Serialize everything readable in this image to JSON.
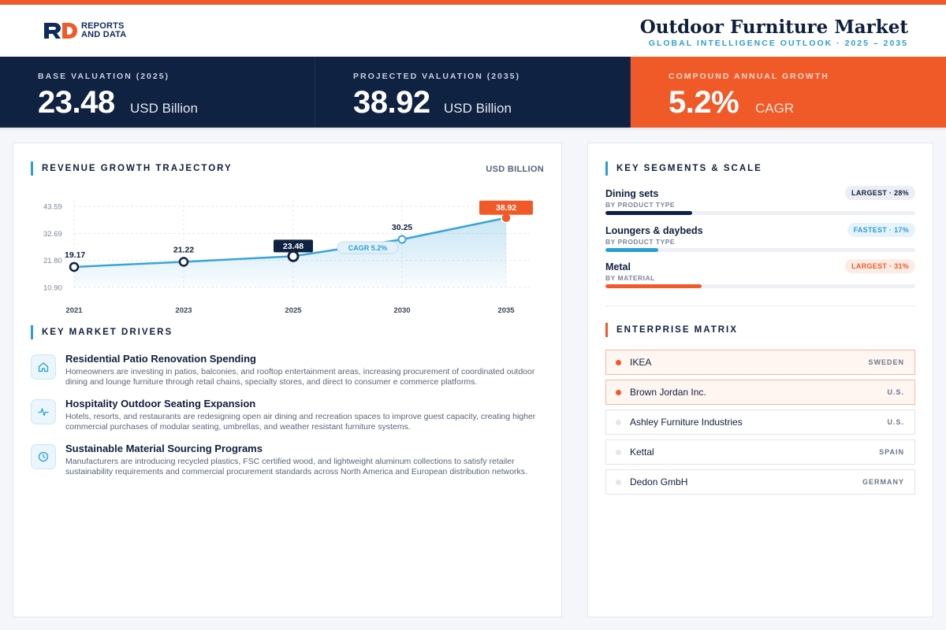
{
  "brand": {
    "line1": "REPORTS",
    "line2": "AND DATA",
    "mark": "RD"
  },
  "header": {
    "title": "Outdoor Furniture Market",
    "subtitle": "GLOBAL INTELLIGENCE OUTLOOK  ·  2025 – 2035"
  },
  "kpis": [
    {
      "label": "BASE VALUATION (2025)",
      "value": "23.48",
      "unit": "USD Billion"
    },
    {
      "label": "PROJECTED VALUATION (2035)",
      "value": "38.92",
      "unit": "USD Billion"
    },
    {
      "label": "COMPOUND ANNUAL GROWTH",
      "value": "5.2%",
      "unit": "CAGR"
    }
  ],
  "revenue": {
    "section_title": "REVENUE GROWTH TRAJECTORY",
    "unit_label": "USD BILLION",
    "cagr_badge": "CAGR 5.2%"
  },
  "chart_data": {
    "type": "area",
    "title": "REVENUE GROWTH TRAJECTORY",
    "ylabel": "USD BILLION",
    "categories": [
      "2021",
      "2023",
      "2025",
      "2030",
      "2035"
    ],
    "values": [
      19.17,
      21.22,
      23.48,
      30.25,
      38.92
    ],
    "value_labels": [
      "19.17",
      "21.22",
      "23.48",
      "30.25",
      "38.92"
    ],
    "y_ticks": [
      "43.59",
      "32.69",
      "21.80",
      "10.90"
    ],
    "ylim": [
      10.9,
      43.59
    ],
    "highlighted": {
      "2025": "dark",
      "2035": "orange"
    },
    "grid": true,
    "colors": {
      "line": "#3aa3d8",
      "dark": "#102242",
      "accent": "#f05a28"
    }
  },
  "drivers": {
    "section_title": "KEY MARKET DRIVERS",
    "items": [
      {
        "icon": "home-icon",
        "title": "Residential Patio Renovation Spending",
        "desc": "Homeowners are investing in patios, balconies, and rooftop entertainment areas, increasing procurement of coordinated outdoor dining and lounge furniture through retail chains, specialty stores, and direct to consumer e commerce platforms."
      },
      {
        "icon": "activity-icon",
        "title": "Hospitality Outdoor Seating Expansion",
        "desc": "Hotels, resorts, and restaurants are redesigning open air dining and recreation spaces to improve guest capacity, creating higher commercial purchases of modular seating, umbrellas, and weather resistant furniture systems."
      },
      {
        "icon": "clock-icon",
        "title": "Sustainable Material Sourcing Programs",
        "desc": "Manufacturers are introducing recycled plastics, FSC certified wood, and lightweight aluminum collections to satisfy retailer sustainability requirements and commercial procurement standards across North America and European distribution networks."
      }
    ]
  },
  "segments": {
    "section_title": "KEY SEGMENTS & SCALE",
    "items": [
      {
        "name": "Dining sets",
        "category": "BY PRODUCT TYPE",
        "badge": "LARGEST · 28%",
        "share": 0.28,
        "color": "#102242"
      },
      {
        "name": "Loungers & daybeds",
        "category": "BY PRODUCT TYPE",
        "badge": "FASTEST · 17%",
        "share": 0.17,
        "color": "#2a9fd6"
      },
      {
        "name": "Metal",
        "category": "BY MATERIAL",
        "badge": "LARGEST · 31%",
        "share": 0.31,
        "color": "#f05a28"
      }
    ]
  },
  "enterprise": {
    "section_title": "ENTERPRISE MATRIX",
    "items": [
      {
        "name": "IKEA",
        "country": "SWEDEN",
        "highlight": true
      },
      {
        "name": "Brown Jordan Inc.",
        "country": "U.S.",
        "highlight": true
      },
      {
        "name": "Ashley Furniture Industries",
        "country": "U.S.",
        "highlight": false
      },
      {
        "name": "Kettal",
        "country": "SPAIN",
        "highlight": false
      },
      {
        "name": "Dedon GmbH",
        "country": "GERMANY",
        "highlight": false
      }
    ]
  }
}
